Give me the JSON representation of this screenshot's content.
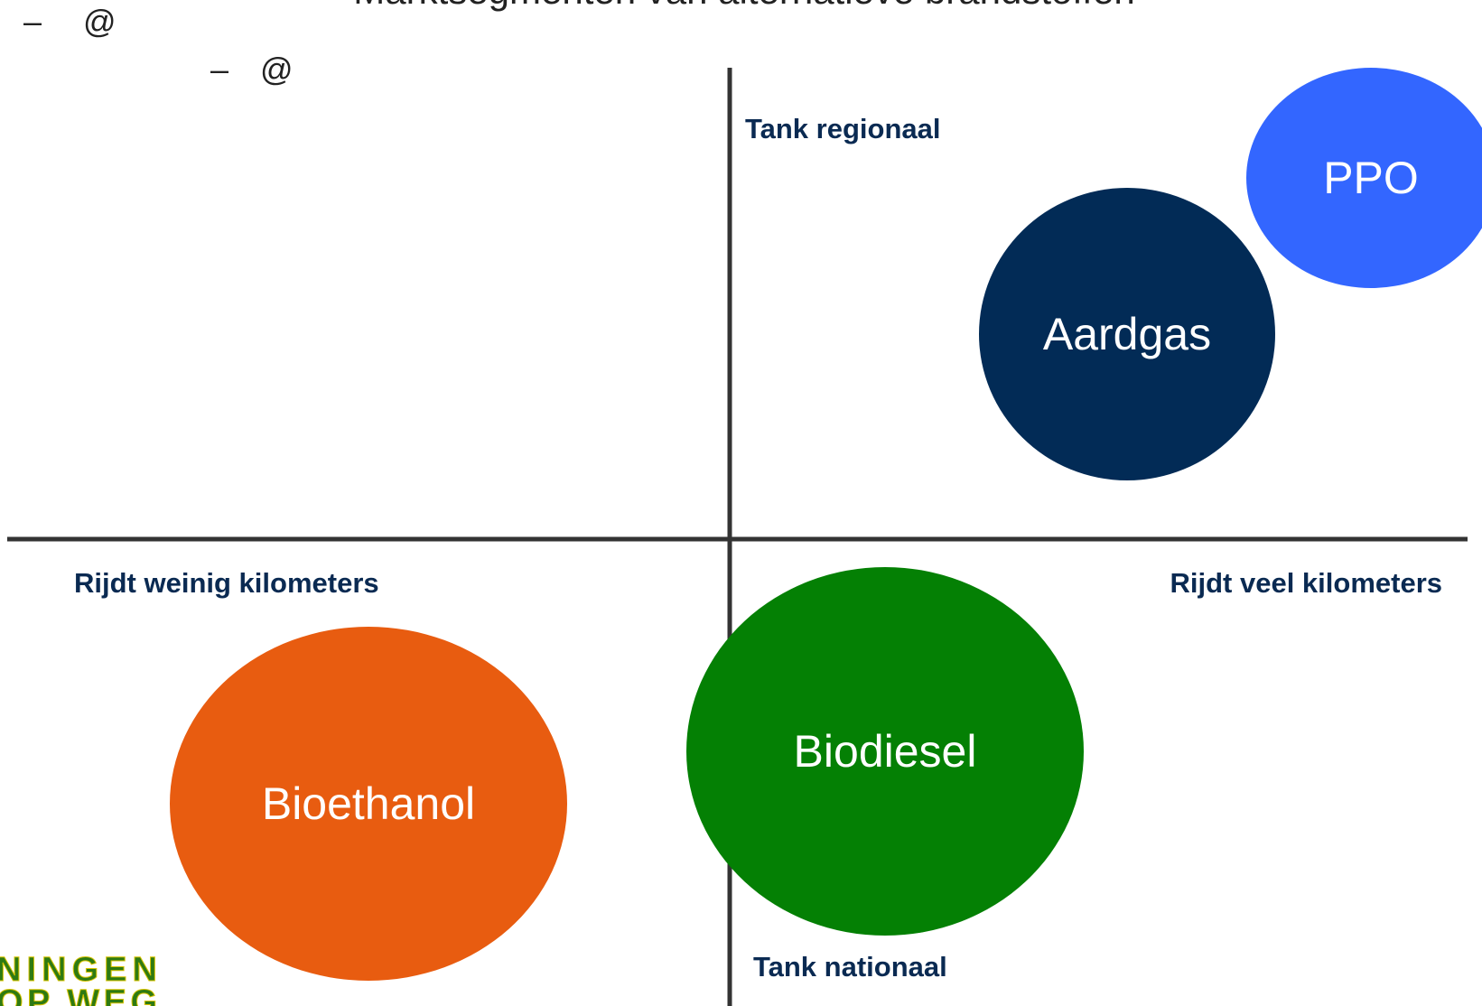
{
  "title": "Marktsegmenten van alternatieve brandstoffen",
  "bullets": [
    {
      "dash": "–",
      "text": "@"
    },
    {
      "dash": "–",
      "text": "@"
    }
  ],
  "axis_labels": {
    "top": "Tank regionaal",
    "bottom": "Tank nationaal",
    "left": "Rijdt weinig kilometers",
    "right": "Rijdt veel kilometers"
  },
  "segments": [
    {
      "label": "PPO",
      "color": "#3366ff"
    },
    {
      "label": "Aardgas",
      "color": "#022b56"
    },
    {
      "label": "Biodiesel",
      "color": "#048004"
    },
    {
      "label": "Bioethanol",
      "color": "#e85c10"
    }
  ],
  "logo": {
    "line1": "NINGEN",
    "line2": "OP WEG"
  }
}
